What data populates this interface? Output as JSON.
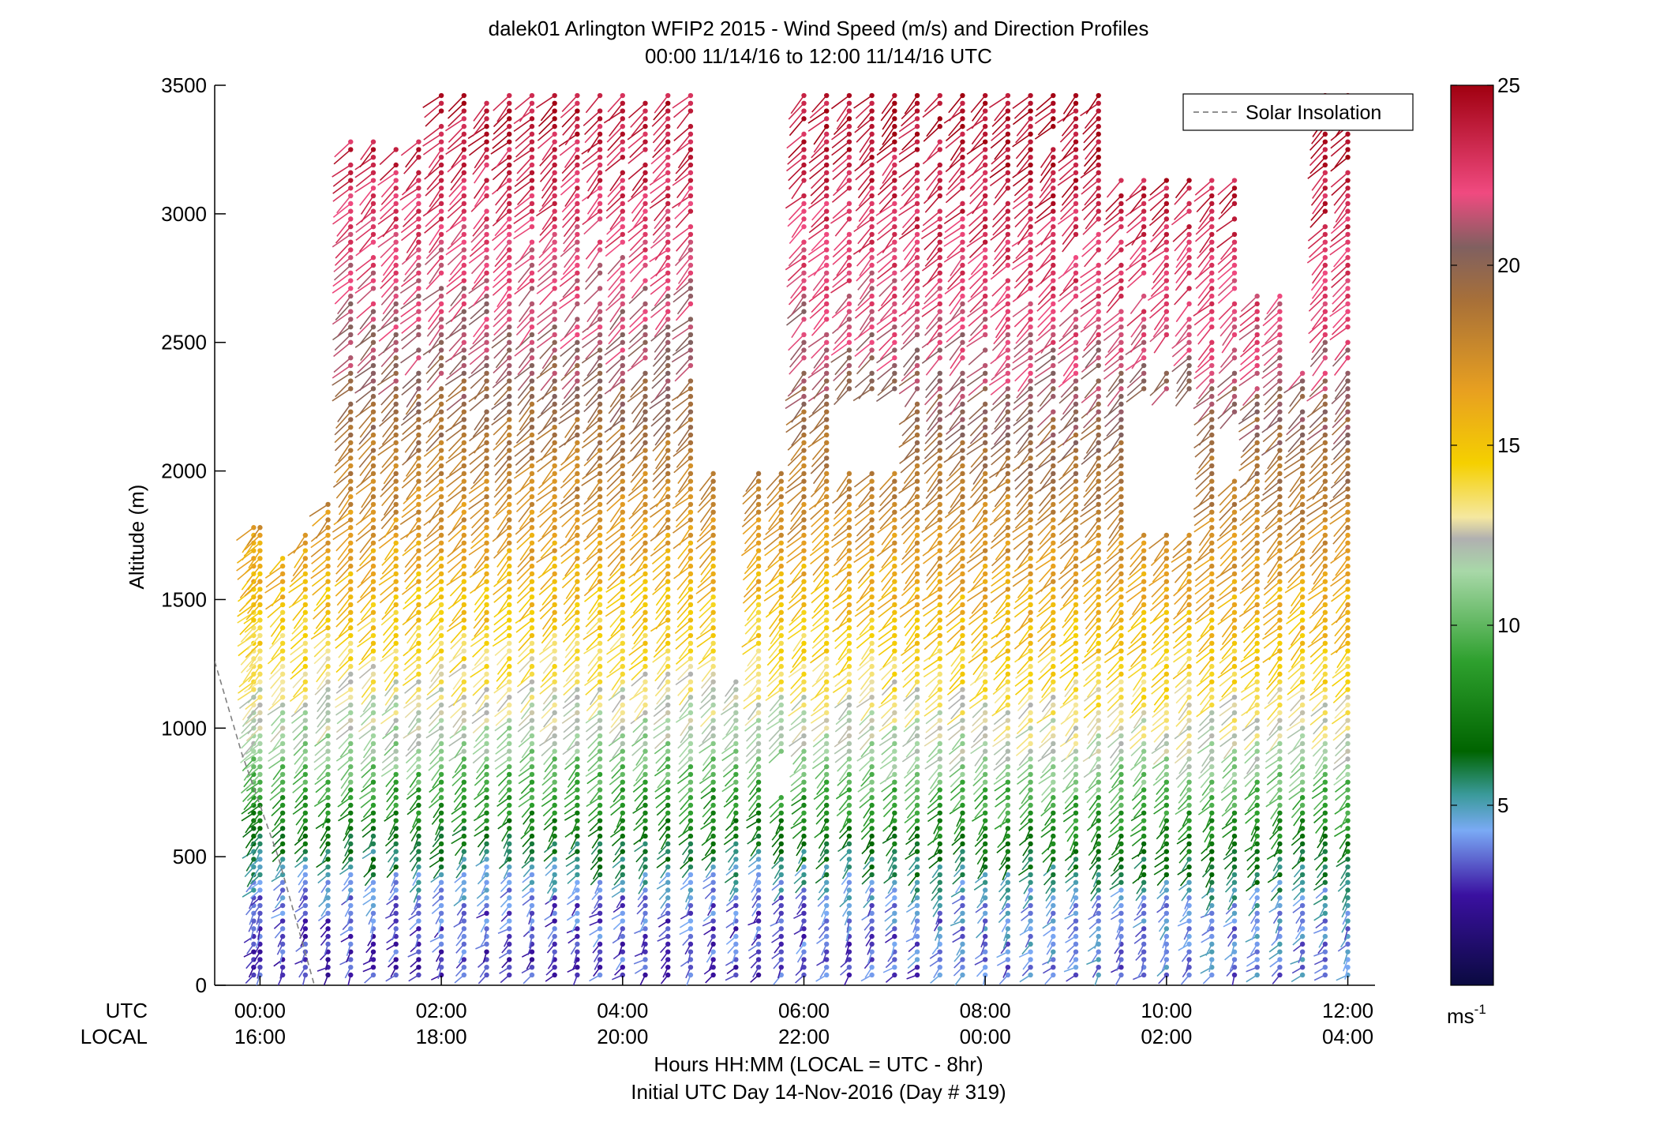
{
  "chart_data": {
    "type": "scatter",
    "subtype": "wind-barb profile",
    "title": "dalek01 Arlington WFIP2 2015 - Wind Speed (m/s) and Direction Profiles",
    "subtitle": "00:00 11/14/16 to 12:00 11/14/16  UTC",
    "xlabel": "Hours HH:MM  (LOCAL = UTC - 8hr)",
    "xlabel2": "Initial UTC Day 14-Nov-2016 (Day # 319)",
    "ylabel": "Altitude (m)",
    "ylim": [
      0,
      3500
    ],
    "xlim_hours_utc": [
      -0.5,
      12.3
    ],
    "y_ticks": [
      "0",
      "500",
      "1000",
      "1500",
      "2000",
      "2500",
      "3000",
      "3500"
    ],
    "x_row_labels": {
      "utc": "UTC",
      "local": "LOCAL"
    },
    "x_ticks_utc": [
      "00:00",
      "02:00",
      "04:00",
      "06:00",
      "08:00",
      "10:00",
      "12:00"
    ],
    "x_ticks_local": [
      "16:00",
      "18:00",
      "20:00",
      "22:00",
      "00:00",
      "02:00",
      "04:00"
    ],
    "x_tick_hours": [
      0,
      2,
      4,
      6,
      8,
      10,
      12
    ],
    "colorbar": {
      "range": [
        0,
        25
      ],
      "ticks": [
        "5",
        "10",
        "15",
        "20",
        "25"
      ],
      "unit_label": "ms",
      "unit_exponent": "-1",
      "stops": [
        {
          "v": 0,
          "c": "#0a0a40"
        },
        {
          "v": 2.5,
          "c": "#3a10a0"
        },
        {
          "v": 4.3,
          "c": "#7aaaf5"
        },
        {
          "v": 5.3,
          "c": "#3a9a9a"
        },
        {
          "v": 6.5,
          "c": "#006400"
        },
        {
          "v": 9.0,
          "c": "#2ea02e"
        },
        {
          "v": 11.5,
          "c": "#a8d8a8"
        },
        {
          "v": 12.4,
          "c": "#b0b0b0"
        },
        {
          "v": 13.0,
          "c": "#f5e8a0"
        },
        {
          "v": 14.5,
          "c": "#f5d000"
        },
        {
          "v": 16.5,
          "c": "#e8a020"
        },
        {
          "v": 19.0,
          "c": "#a87038"
        },
        {
          "v": 20.5,
          "c": "#806060"
        },
        {
          "v": 22.0,
          "c": "#f04a80"
        },
        {
          "v": 25.0,
          "c": "#a00010"
        }
      ]
    },
    "legend": {
      "entries": [
        "Solar Insolation"
      ],
      "placement": "top-right",
      "style": "dashed gray line"
    },
    "solar_insolation_line": [
      [
        -0.5,
        1260
      ],
      [
        -0.2,
        900
      ],
      [
        0.2,
        500
      ],
      [
        0.6,
        0
      ]
    ],
    "profile_times_utc": [
      -0.07,
      0.0,
      0.25,
      0.5,
      0.75,
      1.0,
      1.25,
      1.5,
      1.75,
      2.0,
      2.25,
      2.5,
      2.75,
      3.0,
      3.25,
      3.5,
      3.75,
      4.0,
      4.25,
      4.5,
      4.75,
      5.0,
      5.25,
      5.5,
      5.75,
      6.0,
      6.25,
      6.5,
      6.75,
      7.0,
      7.25,
      7.5,
      7.75,
      8.0,
      8.25,
      8.5,
      8.75,
      9.0,
      9.25,
      9.5,
      9.75,
      10.0,
      10.25,
      10.5,
      10.75,
      11.0,
      11.25,
      11.5,
      11.75,
      12.0
    ],
    "gate_altitudes_m": "40 m to 3460 m every 30 m",
    "speed_profile_ms": [
      [
        0,
        3
      ],
      [
        300,
        3.5
      ],
      [
        600,
        7
      ],
      [
        900,
        11
      ],
      [
        1300,
        14
      ],
      [
        1800,
        17
      ],
      [
        2500,
        21
      ],
      [
        3400,
        24
      ]
    ],
    "direction_note": "Barbs show wind direction; upper levels predominantly westerly-southwesterly with speeds increasing with height."
  }
}
